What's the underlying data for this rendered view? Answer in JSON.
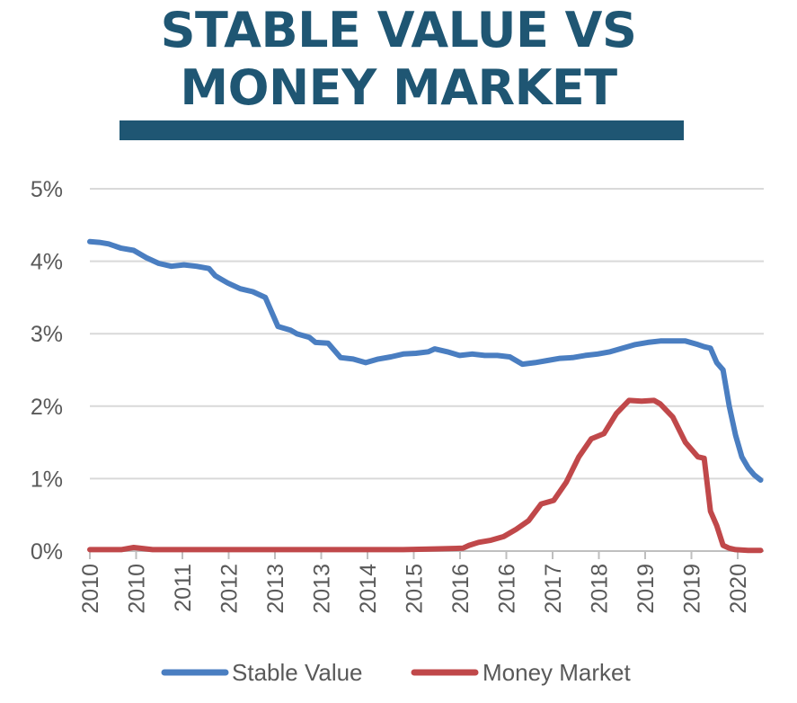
{
  "title": {
    "line1": "STABLE VALUE VS",
    "line2": "MONEY MARKET"
  },
  "colors": {
    "title": "#1f5673",
    "title_bar": "#1f5673",
    "stable_value": "#4a7ec1",
    "money_market": "#c0484a",
    "grid": "#d9d9d9",
    "text": "#595959"
  },
  "chart_data": {
    "type": "line",
    "title": "STABLE VALUE VS MONEY MARKET",
    "xlabel": "",
    "ylabel": "",
    "ylim": [
      0,
      5
    ],
    "y_tick_labels": [
      "0%",
      "1%",
      "2%",
      "3%",
      "4%",
      "5%"
    ],
    "x_tick_labels": [
      "2010",
      "2010",
      "2011",
      "2012",
      "2013",
      "2013",
      "2014",
      "2015",
      "2016",
      "2016",
      "2017",
      "2018",
      "2019",
      "2019",
      "2020"
    ],
    "x_range": [
      2010.0,
      2020.75
    ],
    "grid": true,
    "legend_position": "bottom",
    "series": [
      {
        "name": "Stable Value",
        "x": [
          2010.0,
          2010.15,
          2010.3,
          2010.5,
          2010.7,
          2010.9,
          2011.1,
          2011.3,
          2011.5,
          2011.7,
          2011.9,
          2012.0,
          2012.1,
          2012.2,
          2012.4,
          2012.6,
          2012.8,
          2013.0,
          2013.2,
          2013.3,
          2013.5,
          2013.6,
          2013.8,
          2014.0,
          2014.2,
          2014.4,
          2014.6,
          2014.8,
          2015.0,
          2015.2,
          2015.4,
          2015.5,
          2015.7,
          2015.9,
          2016.1,
          2016.3,
          2016.5,
          2016.7,
          2016.9,
          2017.1,
          2017.3,
          2017.5,
          2017.7,
          2017.9,
          2018.1,
          2018.3,
          2018.5,
          2018.7,
          2018.9,
          2019.1,
          2019.3,
          2019.5,
          2019.7,
          2019.8,
          2019.9,
          2020.0,
          2020.1,
          2020.2,
          2020.3,
          2020.4,
          2020.5,
          2020.6,
          2020.7
        ],
        "values": [
          4.27,
          4.26,
          4.24,
          4.18,
          4.15,
          4.05,
          3.97,
          3.93,
          3.95,
          3.93,
          3.9,
          3.8,
          3.75,
          3.7,
          3.62,
          3.58,
          3.5,
          3.1,
          3.05,
          3.0,
          2.95,
          2.88,
          2.87,
          2.67,
          2.65,
          2.6,
          2.65,
          2.68,
          2.72,
          2.73,
          2.75,
          2.79,
          2.75,
          2.7,
          2.72,
          2.7,
          2.7,
          2.68,
          2.58,
          2.6,
          2.63,
          2.66,
          2.67,
          2.7,
          2.72,
          2.75,
          2.8,
          2.85,
          2.88,
          2.9,
          2.9,
          2.9,
          2.85,
          2.82,
          2.8,
          2.6,
          2.5,
          2.0,
          1.6,
          1.3,
          1.15,
          1.05,
          0.98
        ]
      },
      {
        "name": "Money Market",
        "x": [
          2010.0,
          2010.5,
          2010.7,
          2011.0,
          2011.5,
          2012.0,
          2012.5,
          2013.0,
          2013.5,
          2014.0,
          2014.5,
          2015.0,
          2015.5,
          2015.95,
          2016.05,
          2016.2,
          2016.4,
          2016.6,
          2016.8,
          2017.0,
          2017.2,
          2017.4,
          2017.6,
          2017.8,
          2018.0,
          2018.2,
          2018.4,
          2018.6,
          2018.8,
          2019.0,
          2019.1,
          2019.3,
          2019.5,
          2019.7,
          2019.8,
          2019.9,
          2020.0,
          2020.1,
          2020.2,
          2020.3,
          2020.5,
          2020.7
        ],
        "values": [
          0.02,
          0.02,
          0.05,
          0.02,
          0.02,
          0.02,
          0.02,
          0.02,
          0.02,
          0.02,
          0.02,
          0.02,
          0.03,
          0.04,
          0.08,
          0.12,
          0.15,
          0.2,
          0.3,
          0.42,
          0.65,
          0.7,
          0.95,
          1.3,
          1.55,
          1.62,
          1.9,
          2.08,
          2.07,
          2.08,
          2.03,
          1.85,
          1.5,
          1.3,
          1.28,
          0.55,
          0.35,
          0.08,
          0.04,
          0.02,
          0.01,
          0.01
        ]
      }
    ]
  }
}
